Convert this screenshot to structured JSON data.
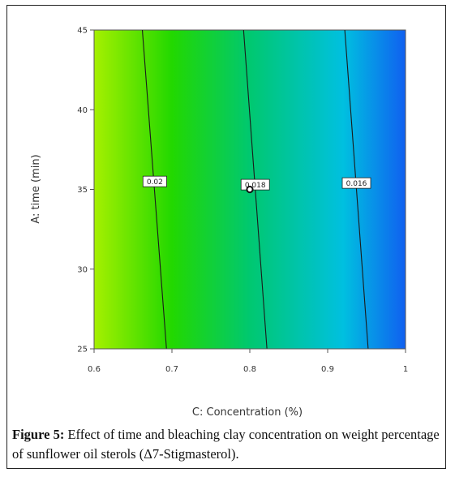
{
  "chart_data": {
    "type": "contour",
    "xlabel": "C: Concentration (%)",
    "ylabel": "A: time (min)",
    "xlim": [
      0.6,
      1.0
    ],
    "ylim": [
      25,
      45
    ],
    "x_ticks": [
      "0.6",
      "0.7",
      "0.8",
      "0.9",
      "1"
    ],
    "y_ticks": [
      "25",
      "30",
      "35",
      "40",
      "45"
    ],
    "grid": false,
    "colormap": [
      "#a6f000",
      "#22d800",
      "#00c870",
      "#00c0e0",
      "#1060f0"
    ],
    "contours": [
      {
        "label": "0.02",
        "points": [
          [
            0.662,
            45
          ],
          [
            0.693,
            25
          ]
        ],
        "label_at": [
          0.678,
          35.5
        ]
      },
      {
        "label": "0.018",
        "points": [
          [
            0.792,
            45
          ],
          [
            0.822,
            25
          ]
        ],
        "label_at": [
          0.807,
          35.3
        ]
      },
      {
        "label": "0.016",
        "points": [
          [
            0.922,
            45
          ],
          [
            0.952,
            25
          ]
        ],
        "label_at": [
          0.937,
          35.4
        ]
      }
    ],
    "design_points": [
      {
        "x": 0.8,
        "y": 35
      }
    ]
  },
  "caption": {
    "label": "Figure 5:",
    "text": " Effect of time and bleaching clay concentration on weight percentage of sunflower oil sterols (Δ7-Stigmasterol)."
  }
}
